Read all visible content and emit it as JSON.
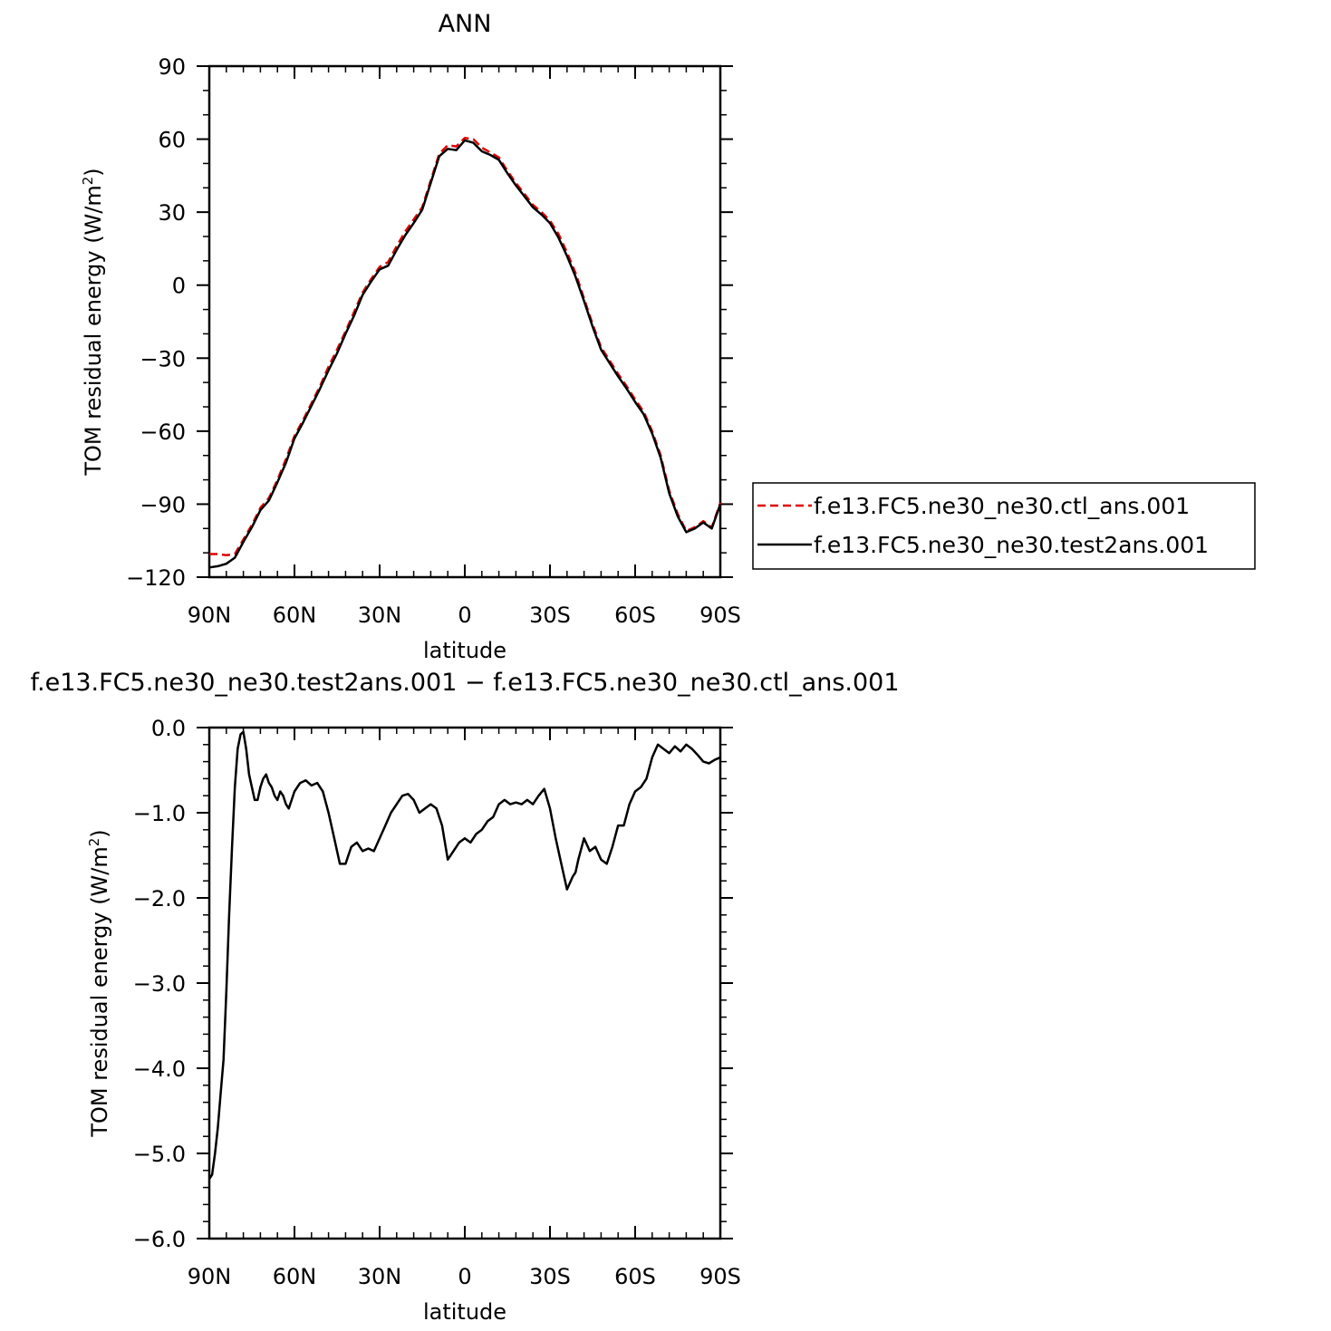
{
  "chart_data": [
    {
      "type": "line",
      "title": "ANN",
      "xlabel": "latitude",
      "ylabel": "TOM residual energy (W/m",
      "ylabel_sup": "2",
      "ylabel_end": ")",
      "xlim": [
        90,
        -90
      ],
      "ylim": [
        -120,
        90
      ],
      "xticks": [
        {
          "value": 90,
          "label": "90N"
        },
        {
          "value": 60,
          "label": "60N"
        },
        {
          "value": 30,
          "label": "30N"
        },
        {
          "value": 0,
          "label": "0"
        },
        {
          "value": -30,
          "label": "30S"
        },
        {
          "value": -60,
          "label": "60S"
        },
        {
          "value": -90,
          "label": "90S"
        }
      ],
      "yticks": [
        {
          "value": 90,
          "label": "90"
        },
        {
          "value": 60,
          "label": "60"
        },
        {
          "value": 30,
          "label": "30"
        },
        {
          "value": 0,
          "label": "0"
        },
        {
          "value": -30,
          "label": "−30"
        },
        {
          "value": -60,
          "label": "−60"
        },
        {
          "value": -90,
          "label": "−90"
        },
        {
          "value": -120,
          "label": "−120"
        }
      ],
      "legend_position": "right",
      "series": [
        {
          "name": "f.e13.FC5.ne30_ne30.ctl_ans.001",
          "color": "#e00000",
          "dash": "dashed",
          "x": [
            90,
            87,
            84,
            81,
            78,
            75,
            72,
            69,
            66,
            63,
            60,
            57,
            54,
            51,
            48,
            45,
            42,
            39,
            36,
            33,
            30,
            27,
            24,
            21,
            18,
            15,
            12,
            9,
            6,
            3,
            0,
            -3,
            -6,
            -9,
            -12,
            -15,
            -18,
            -21,
            -24,
            -27,
            -30,
            -33,
            -36,
            -39,
            -42,
            -45,
            -48,
            -51,
            -54,
            -57,
            -60,
            -63,
            -66,
            -69,
            -72,
            -75,
            -78,
            -81,
            -84,
            -87,
            -90
          ],
          "y": [
            -110.5,
            -110.5,
            -111,
            -110.5,
            -104.5,
            -98.5,
            -91.5,
            -87.5,
            -80,
            -71.5,
            -62,
            -55.5,
            -48.5,
            -41.5,
            -33.5,
            -26.5,
            -19,
            -11,
            -3,
            2.5,
            7.5,
            9.5,
            16,
            22,
            27,
            32,
            43,
            54,
            57.5,
            57,
            60.5,
            60,
            56.5,
            54.5,
            52.5,
            47,
            42,
            37.5,
            33,
            30,
            26.5,
            21,
            13.5,
            5,
            -5.5,
            -16,
            -25.5,
            -31,
            -36.5,
            -41.5,
            -47,
            -52,
            -60,
            -70,
            -84.5,
            -94,
            -101,
            -99.5,
            -97,
            -99.5,
            -89.5
          ]
        },
        {
          "name": "f.e13.FC5.ne30_ne30.test2ans.001",
          "color": "#000000",
          "dash": "solid",
          "x": [
            90,
            87,
            84,
            81,
            78,
            75,
            72,
            69,
            66,
            63,
            60,
            57,
            54,
            51,
            48,
            45,
            42,
            39,
            36,
            33,
            30,
            27,
            24,
            21,
            18,
            15,
            12,
            9,
            6,
            3,
            0,
            -3,
            -6,
            -9,
            -12,
            -15,
            -18,
            -21,
            -24,
            -27,
            -30,
            -33,
            -36,
            -39,
            -42,
            -45,
            -48,
            -51,
            -54,
            -57,
            -60,
            -63,
            -66,
            -69,
            -72,
            -75,
            -78,
            -81,
            -84,
            -87,
            -90
          ],
          "y": [
            -116,
            -115.5,
            -114.5,
            -112,
            -105.5,
            -99.5,
            -92.5,
            -88.5,
            -81,
            -73,
            -63,
            -56.5,
            -49.5,
            -42.5,
            -35,
            -28,
            -20,
            -12.5,
            -4,
            1.5,
            6.5,
            8,
            14.5,
            20.5,
            25.5,
            31,
            42,
            53,
            56,
            55.5,
            59.5,
            58.5,
            55,
            53.5,
            51.5,
            46,
            41,
            36.5,
            32,
            29,
            25.5,
            19.5,
            12,
            3.5,
            -6.5,
            -17,
            -26.5,
            -32,
            -37.5,
            -42.5,
            -48,
            -53,
            -61,
            -71,
            -85.5,
            -95,
            -101.5,
            -100,
            -97.5,
            -100,
            -90
          ]
        }
      ]
    },
    {
      "type": "line",
      "title": "f.e13.FC5.ne30_ne30.test2ans.001 − f.e13.FC5.ne30_ne30.ctl_ans.001",
      "xlabel": "latitude",
      "ylabel": "TOM residual energy (W/m",
      "ylabel_sup": "2",
      "ylabel_end": ")",
      "xlim": [
        90,
        -90
      ],
      "ylim": [
        -6,
        0
      ],
      "xticks": [
        {
          "value": 90,
          "label": "90N"
        },
        {
          "value": 60,
          "label": "60N"
        },
        {
          "value": 30,
          "label": "30N"
        },
        {
          "value": 0,
          "label": "0"
        },
        {
          "value": -30,
          "label": "30S"
        },
        {
          "value": -60,
          "label": "60S"
        },
        {
          "value": -90,
          "label": "90S"
        }
      ],
      "yticks": [
        {
          "value": 0,
          "label": "0.0"
        },
        {
          "value": -1,
          "label": "−1.0"
        },
        {
          "value": -2,
          "label": "−2.0"
        },
        {
          "value": -3,
          "label": "−3.0"
        },
        {
          "value": -4,
          "label": "−4.0"
        },
        {
          "value": -5,
          "label": "−5.0"
        },
        {
          "value": -6,
          "label": "−6.0"
        }
      ],
      "series": [
        {
          "name": "",
          "color": "#000000",
          "dash": "solid",
          "x": [
            90,
            89,
            88,
            87,
            86,
            85,
            84,
            83,
            82,
            81,
            80,
            79,
            78,
            77,
            76,
            75,
            74,
            73,
            72,
            71,
            70,
            69,
            68,
            67,
            66,
            65,
            64,
            63,
            62,
            61,
            60,
            58,
            56,
            54,
            52,
            50,
            48,
            46,
            44,
            42,
            41,
            40,
            38,
            36,
            34,
            32,
            30,
            28,
            26,
            24,
            22,
            20,
            18,
            16,
            14,
            12,
            10,
            8,
            6,
            4,
            2,
            0,
            -2,
            -4,
            -6,
            -8,
            -10,
            -12,
            -14,
            -16,
            -18,
            -20,
            -22,
            -24,
            -26,
            -28,
            -30,
            -32,
            -34,
            -36,
            -38,
            -39,
            -40,
            -42,
            -44,
            -46,
            -48,
            -50,
            -52,
            -54,
            -56,
            -58,
            -60,
            -62,
            -64,
            -66,
            -68,
            -70,
            -72,
            -74,
            -76,
            -78,
            -80,
            -82,
            -84,
            -86,
            -88,
            -90
          ],
          "y": [
            -5.3,
            -5.25,
            -5.0,
            -4.7,
            -4.3,
            -3.9,
            -3.1,
            -2.2,
            -1.4,
            -0.7,
            -0.25,
            -0.08,
            -0.05,
            -0.25,
            -0.55,
            -0.7,
            -0.85,
            -0.85,
            -0.7,
            -0.6,
            -0.55,
            -0.65,
            -0.7,
            -0.8,
            -0.85,
            -0.75,
            -0.8,
            -0.9,
            -0.95,
            -0.85,
            -0.75,
            -0.65,
            -0.62,
            -0.68,
            -0.65,
            -0.75,
            -1.0,
            -1.3,
            -1.6,
            -1.6,
            -1.5,
            -1.4,
            -1.35,
            -1.45,
            -1.42,
            -1.45,
            -1.3,
            -1.15,
            -1.0,
            -0.9,
            -0.8,
            -0.78,
            -0.85,
            -1.0,
            -0.95,
            -0.9,
            -0.95,
            -1.15,
            -1.55,
            -1.45,
            -1.35,
            -1.3,
            -1.35,
            -1.25,
            -1.2,
            -1.1,
            -1.05,
            -0.9,
            -0.85,
            -0.9,
            -0.88,
            -0.9,
            -0.85,
            -0.9,
            -0.8,
            -0.72,
            -0.95,
            -1.3,
            -1.6,
            -1.9,
            -1.75,
            -1.7,
            -1.55,
            -1.3,
            -1.45,
            -1.4,
            -1.55,
            -1.6,
            -1.4,
            -1.15,
            -1.15,
            -0.9,
            -0.75,
            -0.7,
            -0.6,
            -0.35,
            -0.2,
            -0.25,
            -0.3,
            -0.22,
            -0.28,
            -0.2,
            -0.25,
            -0.32,
            -0.4,
            -0.42,
            -0.38,
            -0.35
          ]
        }
      ]
    }
  ]
}
